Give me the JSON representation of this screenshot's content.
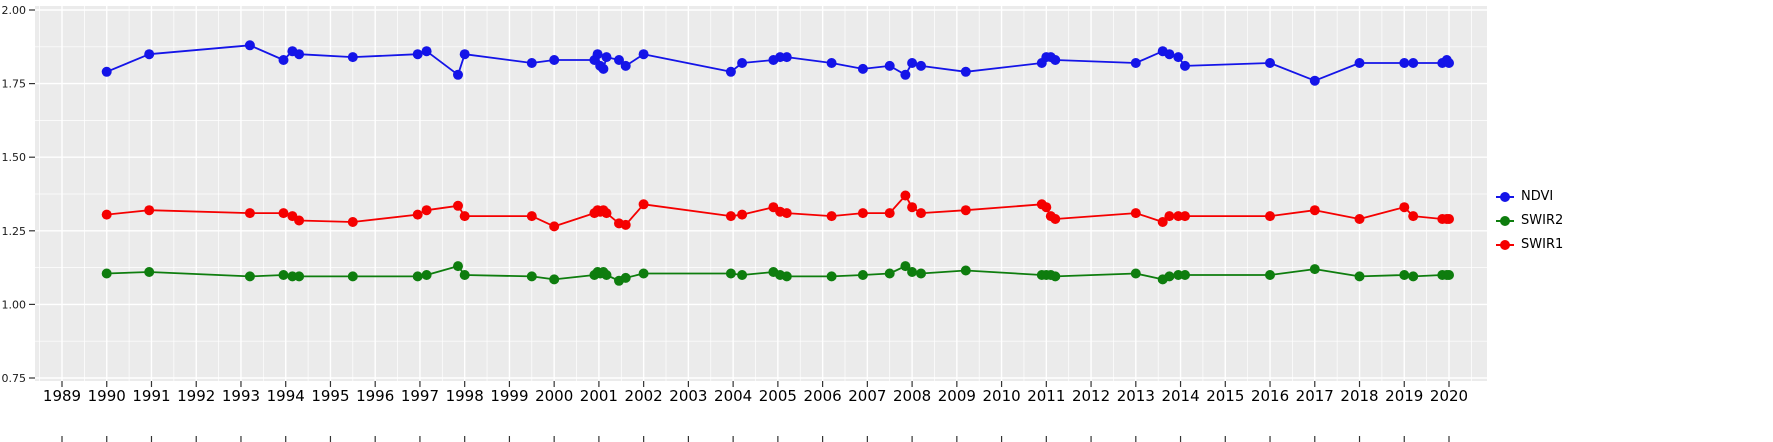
{
  "chart_data": {
    "type": "line",
    "title": "",
    "xlabel": "",
    "ylabel": "",
    "xlim": [
      1988.4,
      2020.85
    ],
    "ylim": [
      0.747,
      2.013
    ],
    "grid": true,
    "legend_position": "right",
    "panel_bg": "#EBEBEB",
    "grid_color": "#FFFFFF",
    "axis_text_color": "#1a1a1a",
    "x_ticks": [
      1989,
      1990,
      1991,
      1992,
      1993,
      1994,
      1995,
      1996,
      1997,
      1998,
      1999,
      2000,
      2001,
      2002,
      2003,
      2004,
      2005,
      2006,
      2007,
      2008,
      2009,
      2010,
      2011,
      2012,
      2013,
      2014,
      2015,
      2016,
      2017,
      2018,
      2019,
      2020
    ],
    "y_ticks": [
      0.75,
      1.0,
      1.25,
      1.5,
      1.75,
      2.0
    ],
    "y_tick_labels": [
      "0.75",
      "1.00",
      "1.25",
      "1.50",
      "1.75",
      "2.00"
    ],
    "x": [
      1990.0,
      1990.95,
      1993.2,
      1993.95,
      1994.15,
      1994.3,
      1995.5,
      1996.95,
      1997.15,
      1997.85,
      1998.0,
      1999.5,
      2000.0,
      2000.9,
      2000.97,
      2001.03,
      2001.1,
      2001.17,
      2001.45,
      2001.6,
      2002.0,
      2003.95,
      2004.2,
      2004.9,
      2005.05,
      2005.2,
      2006.2,
      2006.9,
      2007.5,
      2007.85,
      2008.0,
      2008.2,
      2009.2,
      2010.9,
      2011.0,
      2011.1,
      2011.2,
      2013.0,
      2013.6,
      2013.75,
      2013.95,
      2014.1,
      2016.0,
      2017.0,
      2018.0,
      2019.0,
      2019.2,
      2019.85,
      2019.95,
      2020.0
    ],
    "series": [
      {
        "name": "NDVI",
        "color": "#1414e8",
        "values": [
          1.79,
          1.85,
          1.88,
          1.83,
          1.86,
          1.85,
          1.84,
          1.85,
          1.86,
          1.78,
          1.85,
          1.82,
          1.83,
          1.83,
          1.85,
          1.81,
          1.8,
          1.84,
          1.83,
          1.81,
          1.85,
          1.79,
          1.82,
          1.83,
          1.84,
          1.84,
          1.82,
          1.8,
          1.81,
          1.78,
          1.82,
          1.81,
          1.79,
          1.82,
          1.84,
          1.84,
          1.83,
          1.82,
          1.86,
          1.85,
          1.84,
          1.81,
          1.82,
          1.76,
          1.82,
          1.82,
          1.82,
          1.82,
          1.83,
          1.82
        ]
      },
      {
        "name": "SWIR2",
        "color": "#0e7d0e",
        "values": [
          1.105,
          1.11,
          1.095,
          1.1,
          1.095,
          1.095,
          1.095,
          1.095,
          1.1,
          1.13,
          1.1,
          1.095,
          1.085,
          1.1,
          1.11,
          1.105,
          1.11,
          1.1,
          1.08,
          1.09,
          1.105,
          1.105,
          1.1,
          1.11,
          1.1,
          1.095,
          1.095,
          1.1,
          1.105,
          1.13,
          1.11,
          1.105,
          1.115,
          1.1,
          1.1,
          1.1,
          1.095,
          1.105,
          1.085,
          1.095,
          1.1,
          1.1,
          1.1,
          1.12,
          1.095,
          1.1,
          1.095,
          1.1,
          1.1,
          1.1
        ]
      },
      {
        "name": "SWIR1",
        "color": "#f50000",
        "values": [
          1.305,
          1.32,
          1.31,
          1.31,
          1.3,
          1.285,
          1.28,
          1.305,
          1.32,
          1.335,
          1.3,
          1.3,
          1.265,
          1.31,
          1.32,
          1.315,
          1.32,
          1.31,
          1.275,
          1.27,
          1.34,
          1.3,
          1.305,
          1.33,
          1.315,
          1.31,
          1.3,
          1.31,
          1.31,
          1.37,
          1.33,
          1.31,
          1.32,
          1.34,
          1.33,
          1.3,
          1.29,
          1.31,
          1.28,
          1.3,
          1.3,
          1.3,
          1.3,
          1.32,
          1.29,
          1.33,
          1.3,
          1.29,
          1.29,
          1.29
        ]
      }
    ]
  },
  "legend": {
    "items": [
      {
        "label": "NDVI",
        "color": "#1414e8"
      },
      {
        "label": "SWIR2",
        "color": "#0e7d0e"
      },
      {
        "label": "SWIR1",
        "color": "#f50000"
      }
    ]
  }
}
